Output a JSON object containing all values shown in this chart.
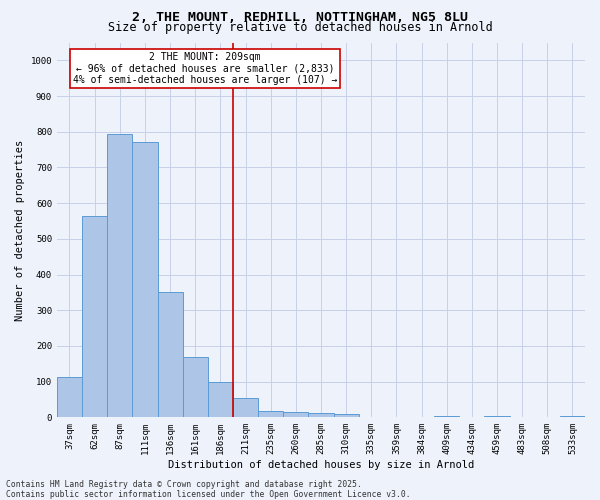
{
  "title": "2, THE MOUNT, REDHILL, NOTTINGHAM, NG5 8LU",
  "subtitle": "Size of property relative to detached houses in Arnold",
  "xlabel": "Distribution of detached houses by size in Arnold",
  "ylabel": "Number of detached properties",
  "categories": [
    "37sqm",
    "62sqm",
    "87sqm",
    "111sqm",
    "136sqm",
    "161sqm",
    "186sqm",
    "211sqm",
    "235sqm",
    "260sqm",
    "285sqm",
    "310sqm",
    "335sqm",
    "359sqm",
    "384sqm",
    "409sqm",
    "434sqm",
    "459sqm",
    "483sqm",
    "508sqm",
    "533sqm"
  ],
  "values": [
    113,
    563,
    793,
    770,
    350,
    168,
    99,
    55,
    18,
    14,
    13,
    10,
    0,
    0,
    0,
    5,
    0,
    5,
    0,
    0,
    5
  ],
  "bar_color": "#adc6e8",
  "bar_edge_color": "#5b9bd5",
  "vline_pos": 6.5,
  "vline_label": "2 THE MOUNT: 209sqm",
  "annotation_line1": "← 96% of detached houses are smaller (2,833)",
  "annotation_line2": "4% of semi-detached houses are larger (107) →",
  "annotation_box_color": "#cc0000",
  "ylim": [
    0,
    1050
  ],
  "yticks": [
    0,
    100,
    200,
    300,
    400,
    500,
    600,
    700,
    800,
    900,
    1000
  ],
  "footer_line1": "Contains HM Land Registry data © Crown copyright and database right 2025.",
  "footer_line2": "Contains public sector information licensed under the Open Government Licence v3.0.",
  "bg_color": "#eef2fb",
  "grid_color": "#c8d0e8",
  "title_fontsize": 9.5,
  "subtitle_fontsize": 8.5,
  "axis_label_fontsize": 7.5,
  "tick_fontsize": 6.5,
  "annotation_fontsize": 7,
  "footer_fontsize": 5.8
}
